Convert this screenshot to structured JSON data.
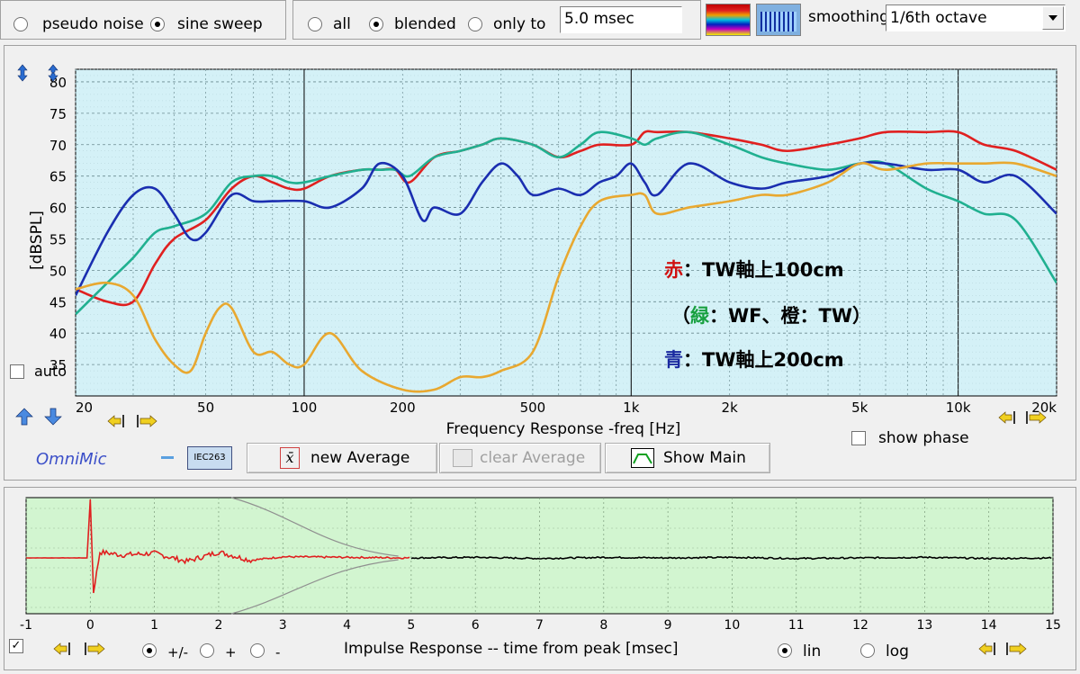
{
  "toolbar": {
    "signal_options": [
      "pseudo noise",
      "sine sweep"
    ],
    "signal_selected": "sine sweep",
    "gate_options": [
      "all",
      "blended",
      "only to"
    ],
    "gate_selected": "blended",
    "gate_time": "5.0 msec",
    "smoothing_label": "smoothing",
    "smoothing_value": "1/6th octave"
  },
  "freq_panel": {
    "auto_label": "auto",
    "auto_checked": false,
    "ylabel": "[dBSPL]",
    "xlabel": "Frequency Response -freq [Hz]",
    "brand": "OmniMic",
    "iec_badge": "IEC263",
    "new_average_label": "new Average",
    "new_average_icon_glyph": "x̄",
    "clear_average_label": "clear Average",
    "show_main_label": "Show Main",
    "show_phase_label": "show phase",
    "show_phase_checked": false,
    "annotation": {
      "line1_marker": "赤",
      "line1_text": "：TW軸上100cm",
      "line2_open": "（",
      "line2_marker_green": "緑",
      "line2_mid": "：WF、橙：TW）",
      "line3_marker": "青",
      "line3_text": "：TW軸上200cm"
    }
  },
  "impulse_panel": {
    "title": "Impulse Response  -- time from peak [msec]",
    "checkbox_checked": true,
    "polarity_options": [
      "+/-",
      "+",
      "-"
    ],
    "polarity_selected": "+/-",
    "scale_options": [
      "lin",
      "log"
    ],
    "scale_selected": "lin"
  },
  "colors": {
    "freq_plot_bg": "#d4f1f7",
    "impulse_plot_bg": "#d2f5d0",
    "red_series": "#e02020",
    "green_series": "#20b090",
    "blue_series": "#1a2eb0",
    "orange_series": "#e8a830",
    "brand_color": "#3b4fc8",
    "annotation_red": "#d01010",
    "annotation_green": "#18a040",
    "annotation_blue": "#1a2aa0"
  },
  "chart_data": [
    {
      "type": "line",
      "title": "Frequency Response",
      "xlabel": "Frequency Response -freq [Hz]",
      "ylabel": "[dBSPL]",
      "xscale": "log",
      "xlim": [
        20,
        20000
      ],
      "ylim": [
        30,
        82
      ],
      "x_ticks": [
        20,
        50,
        100,
        200,
        500,
        1000,
        2000,
        5000,
        10000,
        20000
      ],
      "x_tick_labels": [
        "20",
        "50",
        "100",
        "200",
        "500",
        "1k",
        "2k",
        "5k",
        "10k",
        "20k"
      ],
      "y_ticks": [
        35,
        40,
        45,
        50,
        55,
        60,
        65,
        70,
        75,
        80
      ],
      "grid": true,
      "series": [
        {
          "color": "red",
          "x": [
            20,
            25,
            30,
            35,
            40,
            50,
            60,
            70,
            80,
            90,
            100,
            120,
            150,
            170,
            190,
            210,
            250,
            300,
            350,
            400,
            500,
            600,
            700,
            800,
            1000,
            1100,
            1200,
            1500,
            2000,
            2500,
            3000,
            4000,
            5000,
            6000,
            8000,
            10000,
            12000,
            15000,
            20000
          ],
          "values": [
            47,
            45,
            45,
            51,
            55,
            58,
            63,
            65,
            64,
            63,
            63,
            65,
            66,
            66,
            66,
            64,
            68,
            69,
            70,
            71,
            70,
            68,
            69,
            70,
            70,
            72,
            72,
            72,
            71,
            70,
            69,
            70,
            71,
            72,
            72,
            72,
            70,
            69,
            66
          ]
        },
        {
          "color": "green",
          "x": [
            20,
            25,
            30,
            35,
            40,
            50,
            60,
            70,
            80,
            90,
            100,
            120,
            150,
            170,
            190,
            210,
            250,
            300,
            350,
            400,
            500,
            600,
            700,
            800,
            1000,
            1100,
            1200,
            1500,
            2000,
            2500,
            3000,
            4000,
            5000,
            6000,
            8000,
            10000,
            12000,
            15000,
            20000
          ],
          "values": [
            43,
            48,
            52,
            56,
            57,
            59,
            64,
            65,
            65,
            64,
            64,
            65,
            66,
            66,
            66,
            65,
            68,
            69,
            70,
            71,
            70,
            68,
            70,
            72,
            71,
            70,
            71,
            72,
            70,
            68,
            67,
            66,
            67,
            67,
            63,
            61,
            59,
            58,
            48
          ]
        },
        {
          "color": "blue",
          "x": [
            20,
            25,
            30,
            35,
            40,
            45,
            50,
            60,
            70,
            80,
            100,
            120,
            150,
            170,
            200,
            230,
            250,
            300,
            350,
            400,
            450,
            500,
            600,
            700,
            800,
            900,
            1000,
            1100,
            1200,
            1500,
            2000,
            2500,
            3000,
            4000,
            5000,
            6000,
            8000,
            10000,
            12000,
            15000,
            20000
          ],
          "values": [
            46,
            56,
            62,
            63,
            59,
            55,
            56,
            62,
            61,
            61,
            61,
            60,
            63,
            67,
            65,
            58,
            60,
            59,
            64,
            67,
            65,
            62,
            63,
            62,
            64,
            65,
            67,
            64,
            62,
            67,
            64,
            63,
            64,
            65,
            67,
            67,
            66,
            66,
            64,
            65,
            59
          ]
        },
        {
          "color": "orange",
          "x": [
            20,
            25,
            30,
            35,
            40,
            45,
            50,
            55,
            60,
            70,
            80,
            90,
            100,
            120,
            150,
            200,
            250,
            300,
            350,
            400,
            500,
            600,
            700,
            800,
            1000,
            1100,
            1200,
            1500,
            2000,
            2500,
            3000,
            4000,
            5000,
            6000,
            8000,
            10000,
            12000,
            15000,
            20000
          ],
          "values": [
            47,
            48,
            46,
            39,
            35,
            34,
            40,
            44,
            44,
            37,
            37,
            35,
            35,
            40,
            34,
            31,
            31,
            33,
            33,
            34,
            37,
            49,
            57,
            61,
            62,
            62,
            59,
            60,
            61,
            62,
            62,
            64,
            67,
            66,
            67,
            67,
            67,
            67,
            65
          ]
        }
      ]
    },
    {
      "type": "line",
      "title": "Impulse Response",
      "xlabel": "Impulse Response  -- time from peak [msec]",
      "xlim": [
        -1,
        15
      ],
      "x_ticks": [
        -1,
        0,
        1,
        2,
        3,
        4,
        5,
        6,
        7,
        8,
        9,
        10,
        11,
        12,
        13,
        14,
        15
      ],
      "x_tick_labels": [
        "-1",
        "0",
        "1",
        "2",
        "3",
        "4",
        "5",
        "6",
        "7",
        "8",
        "9",
        "10",
        "11",
        "12",
        "13",
        "14",
        "15"
      ],
      "grid": true,
      "series": [
        {
          "color": "red",
          "x": [
            -1,
            -0.05,
            0,
            0.05,
            0.15,
            0.5,
            1,
            1.5,
            2,
            2.5,
            3,
            4,
            5
          ],
          "values": [
            0,
            0,
            1.0,
            -0.6,
            0.1,
            0.05,
            0.08,
            -0.06,
            0.1,
            -0.04,
            0.02,
            0.01,
            0
          ]
        },
        {
          "color": "black",
          "x": [
            5,
            6,
            7,
            8,
            9,
            10,
            11,
            12,
            13,
            14,
            15
          ],
          "values": [
            0,
            0.01,
            -0.01,
            0.01,
            0,
            0.01,
            -0.01,
            0,
            0.01,
            -0.01,
            0
          ]
        }
      ]
    }
  ]
}
